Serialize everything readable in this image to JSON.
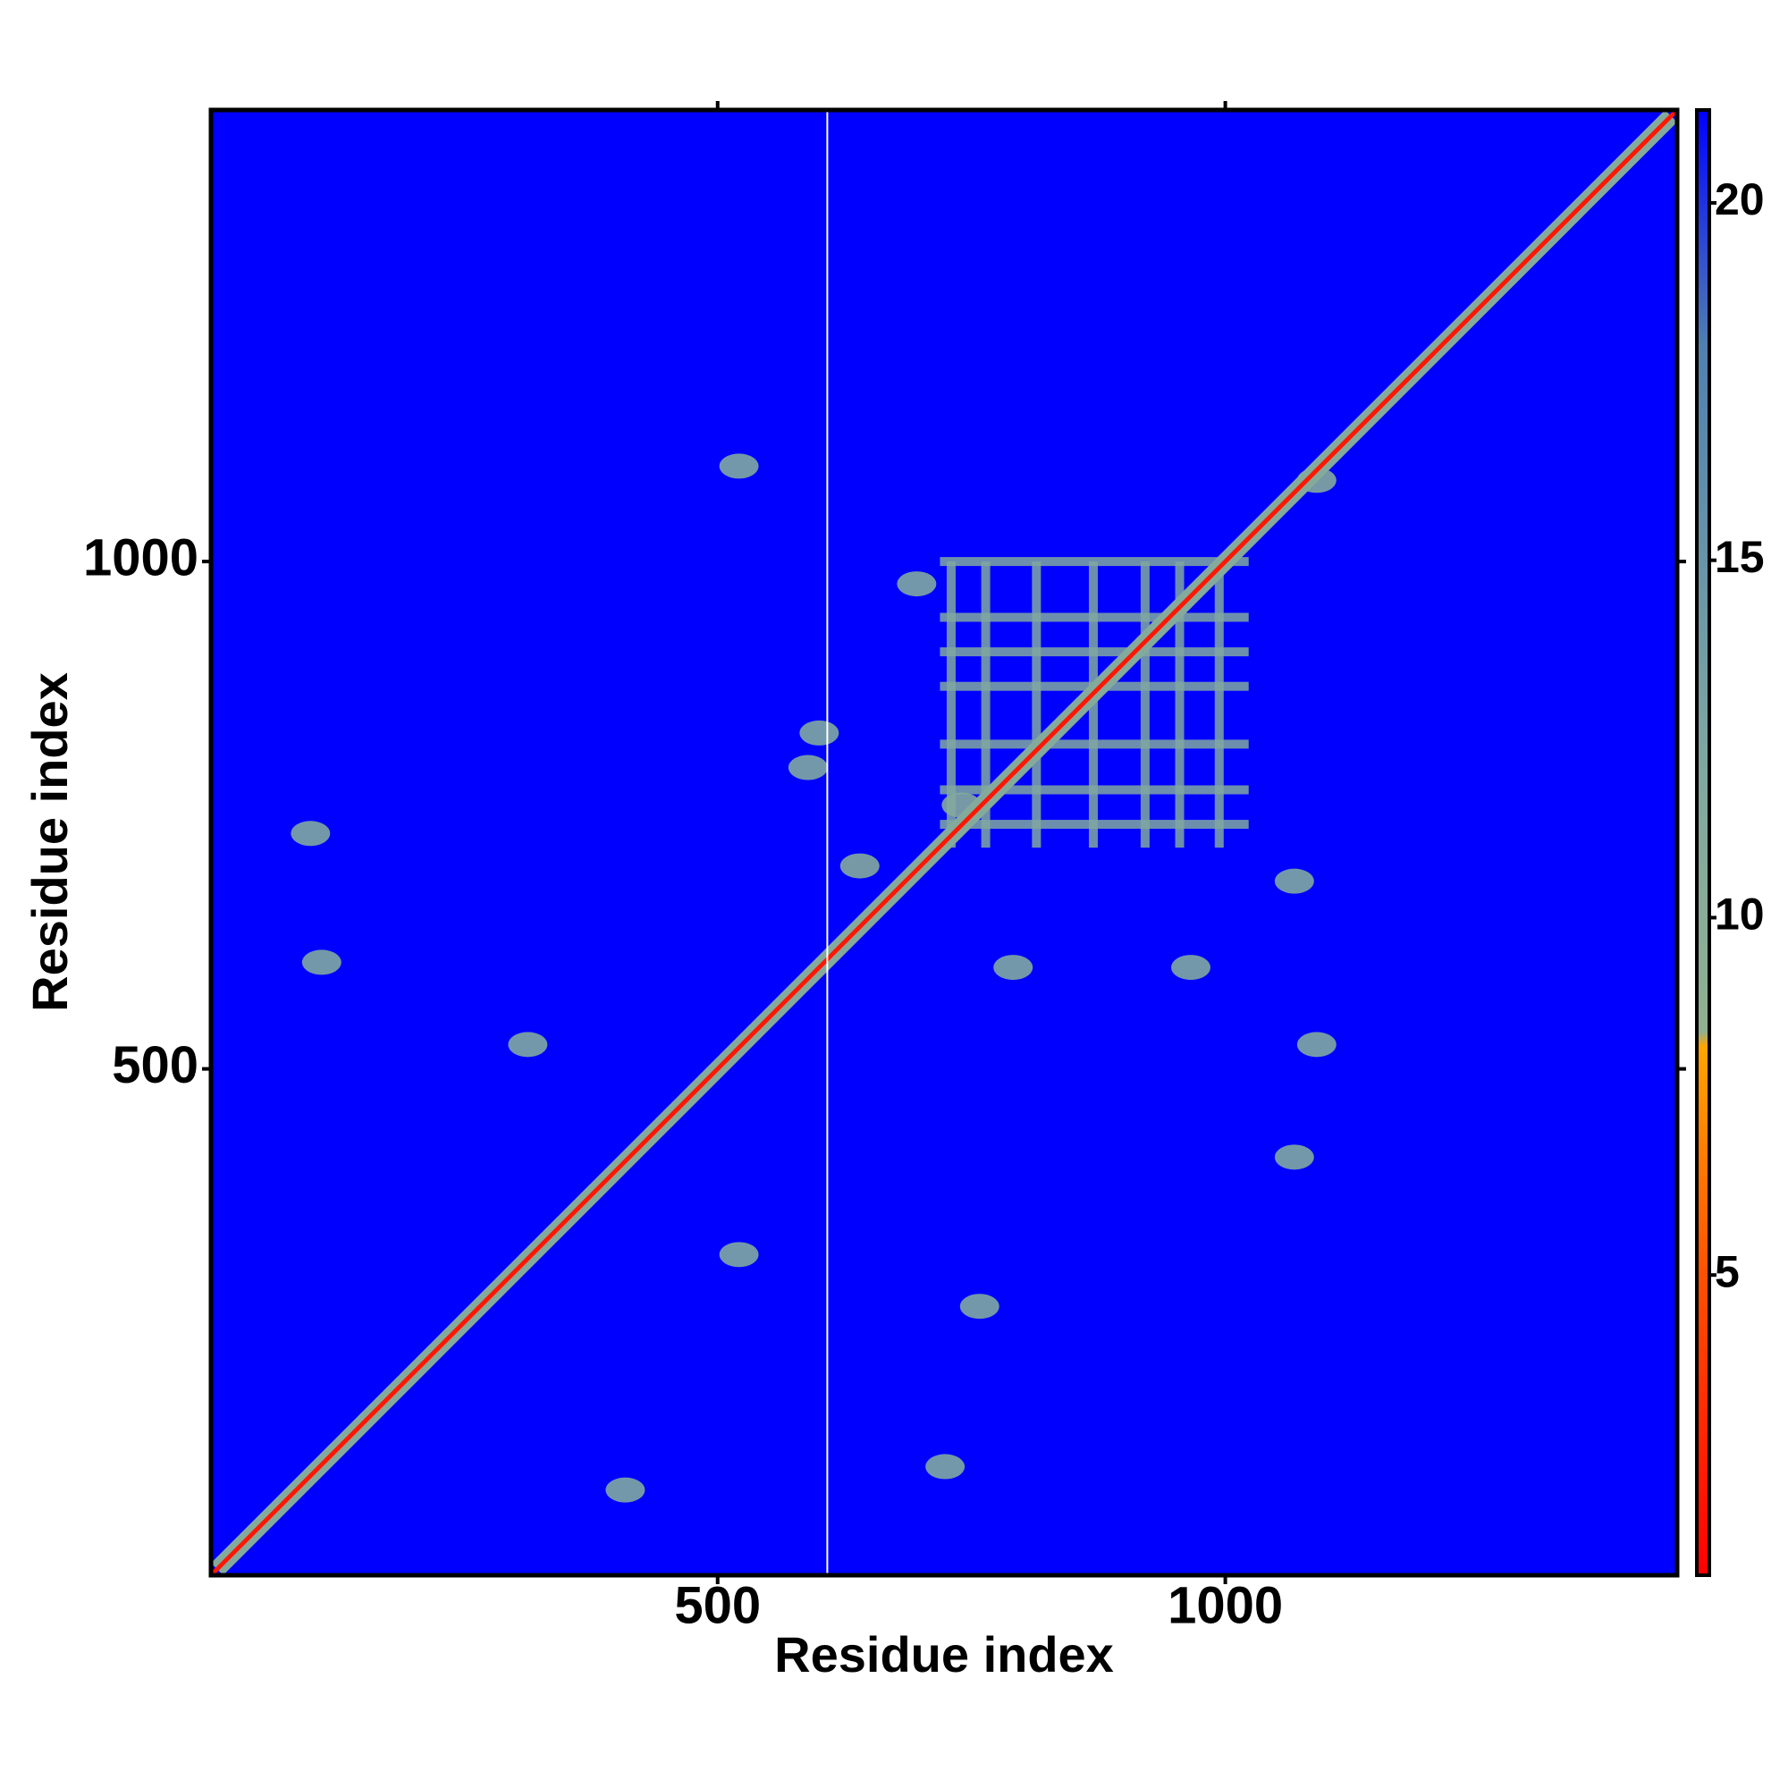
{
  "chart_data": {
    "type": "heatmap",
    "x_label": "Residue index",
    "y_label": "Residue index",
    "xlim": [
      1,
      1445
    ],
    "ylim": [
      1,
      1445
    ],
    "xticks": [
      500,
      1000
    ],
    "yticks": [
      500,
      1000
    ],
    "colorbar": {
      "lim": [
        0.8,
        21.3
      ],
      "ticks": [
        5,
        10,
        15,
        20
      ],
      "colorscale": [
        {
          "value": 0.8,
          "color": "#ff0000"
        },
        {
          "value": 5,
          "color": "#ff5000"
        },
        {
          "value": 8.2,
          "color": "#ffa500"
        },
        {
          "value": 8.4,
          "color": "#90b090"
        },
        {
          "value": 12,
          "color": "#80a8a0"
        },
        {
          "value": 18,
          "color": "#5080b0"
        },
        {
          "value": 21.3,
          "color": "#0000ff"
        }
      ]
    },
    "background": 21.3,
    "null_x": [
      608
    ],
    "diagonal": {
      "values": [
        11,
        2
      ],
      "half_widths": [
        12,
        3
      ]
    },
    "cluster": {
      "xlim": [
        719,
        1023
      ],
      "ylim": [
        718,
        1000
      ],
      "value": 12,
      "rows": [
        1000,
        945,
        911,
        877,
        820,
        775,
        741
      ],
      "cols": [
        730,
        764,
        814,
        870,
        921,
        955,
        994
      ]
    },
    "patches": {
      "x": [
        521,
        589,
        600,
        696,
        791,
        1090,
        313,
        110,
        99,
        521,
        409,
        724,
        758,
        1068,
        966,
        1068,
        1090,
        640,
        740
      ],
      "y": [
        1094,
        797,
        831,
        978,
        600,
        524,
        524,
        605,
        732,
        317,
        85,
        108,
        266,
        685,
        600,
        413,
        1080,
        700,
        760
      ],
      "values": [
        12,
        12,
        12,
        12,
        12,
        12,
        12,
        12,
        12,
        12,
        12,
        12,
        12,
        12,
        12,
        12,
        11,
        11,
        11
      ]
    }
  }
}
